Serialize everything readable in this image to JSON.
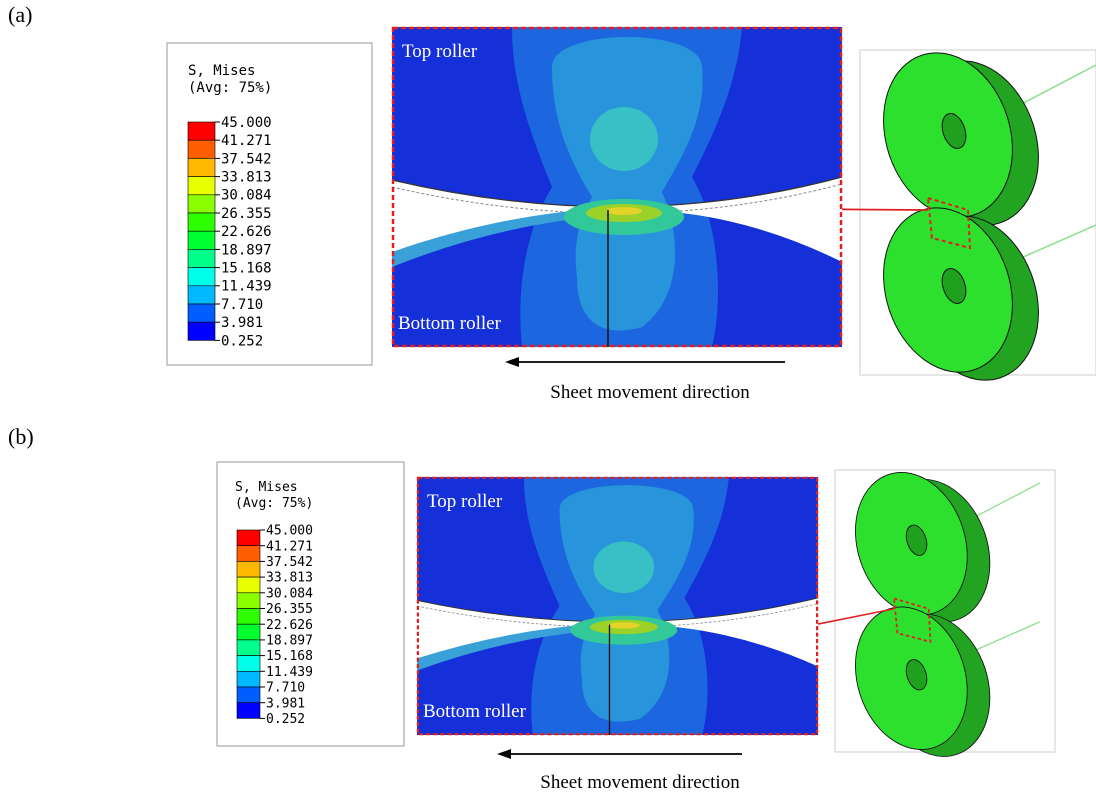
{
  "panels": [
    {
      "label": "(a)",
      "legend": {
        "title": "S, Mises",
        "subtitle": "(Avg: 75%)",
        "values": [
          "45.000",
          "41.271",
          "37.542",
          "33.813",
          "30.084",
          "26.355",
          "22.626",
          "18.897",
          "15.168",
          "11.439",
          "7.710",
          "3.981",
          "0.252"
        ]
      },
      "contour": {
        "top_label": "Top roller",
        "bottom_label": "Bottom roller"
      },
      "caption": "Sheet movement direction"
    },
    {
      "label": "(b)",
      "legend": {
        "title": "S, Mises",
        "subtitle": "(Avg: 75%)",
        "values": [
          "45.000",
          "41.271",
          "37.542",
          "33.813",
          "30.084",
          "26.355",
          "22.626",
          "18.897",
          "15.168",
          "11.439",
          "7.710",
          "3.981",
          "0.252"
        ]
      },
      "contour": {
        "top_label": "Top roller",
        "bottom_label": "Bottom roller"
      },
      "caption": "Sheet movement direction"
    }
  ]
}
